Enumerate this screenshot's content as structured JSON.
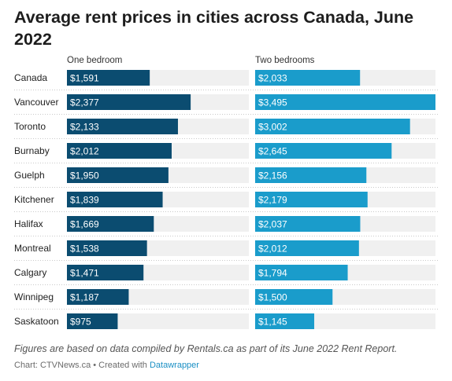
{
  "chart_data": {
    "type": "bar",
    "title": "Average rent prices in cities across Canada, June 2022",
    "categories": [
      "Canada",
      "Vancouver",
      "Toronto",
      "Burnaby",
      "Guelph",
      "Kitchener",
      "Halifax",
      "Montreal",
      "Calgary",
      "Winnipeg",
      "Saskatoon"
    ],
    "series": [
      {
        "name": "One bedroom",
        "values": [
          1591,
          2377,
          2133,
          2012,
          1950,
          1839,
          1669,
          1538,
          1471,
          1187,
          975
        ],
        "labels": [
          "$1,591",
          "$2,377",
          "$2,133",
          "$2,012",
          "$1,950",
          "$1,839",
          "$1,669",
          "$1,538",
          "$1,471",
          "$1,187",
          "$975"
        ],
        "color": "#0b4c70"
      },
      {
        "name": "Two bedrooms",
        "values": [
          2033,
          3495,
          3002,
          2645,
          2156,
          2179,
          2037,
          2012,
          1794,
          1500,
          1145
        ],
        "labels": [
          "$2,033",
          "$3,495",
          "$3,002",
          "$2,645",
          "$2,156",
          "$2,179",
          "$2,037",
          "$2,012",
          "$1,794",
          "$1,500",
          "$1,145"
        ],
        "color": "#1a9ccb"
      }
    ],
    "xlim": [
      0,
      3495
    ],
    "track_color": "#f0f0f0",
    "notes": "Figures are based on data compiled by Rentals.ca as part of its June 2022 Rent Report.",
    "source": "Chart: CTVNews.ca",
    "credit_prefix": " • Created with ",
    "credit_link": "Datawrapper"
  }
}
